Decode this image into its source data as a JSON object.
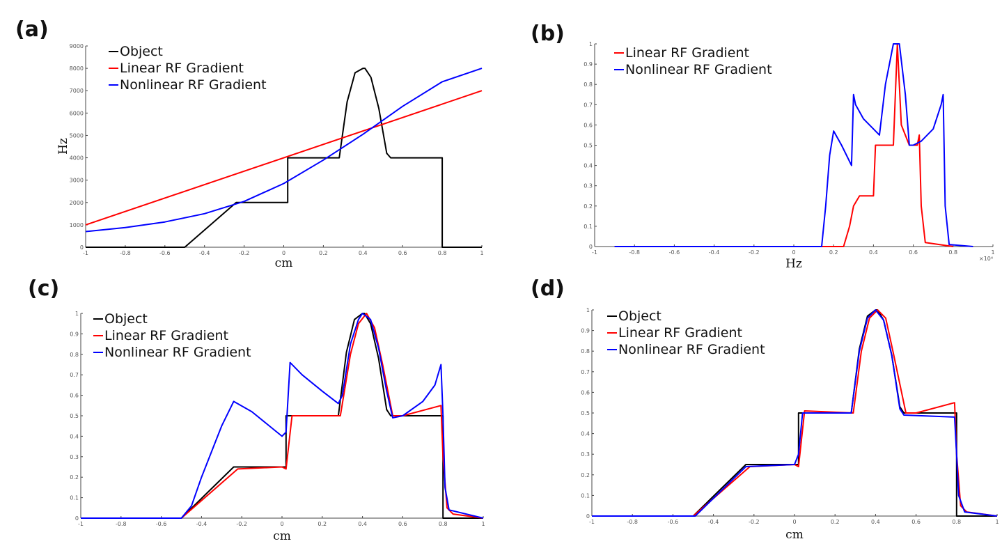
{
  "panels": [
    {
      "label": "(a)"
    },
    {
      "label": "(b)"
    },
    {
      "label": "(c)"
    },
    {
      "label": "(d)"
    }
  ],
  "colors": {
    "object": "#000000",
    "linear": "#ff0000",
    "nonlinear": "#0000ff"
  },
  "chart_data": [
    {
      "type": "line",
      "panel": "(a)",
      "xlabel": "cm",
      "ylabel": "Hz",
      "xlim": [
        -1,
        1
      ],
      "ylim": [
        0,
        9000
      ],
      "xticks": [
        "-1",
        "-0.8",
        "-0.6",
        "-0.4",
        "-0.2",
        "0",
        "0.2",
        "0.4",
        "0.6",
        "0.8",
        "1"
      ],
      "yticks": [
        "0",
        "1000",
        "2000",
        "3000",
        "4000",
        "5000",
        "6000",
        "7000",
        "8000",
        "9000"
      ],
      "legend": [
        "Object",
        "Linear RF Gradient",
        "Nonlinear RF Gradient"
      ],
      "series": [
        {
          "name": "Object",
          "color": "#000000",
          "x": [
            -1,
            -0.5,
            -0.24,
            0.02,
            0.02,
            0.28,
            0.32,
            0.36,
            0.4,
            0.41,
            0.44,
            0.48,
            0.52,
            0.54,
            0.8,
            0.8,
            1
          ],
          "y": [
            0,
            0,
            2000,
            2000,
            4000,
            4000,
            6500,
            7800,
            8000,
            8000,
            7600,
            6200,
            4200,
            4000,
            4000,
            0,
            0
          ]
        },
        {
          "name": "Linear RF Gradient",
          "color": "#ff0000",
          "x": [
            -1,
            1
          ],
          "y": [
            1000,
            7000
          ]
        },
        {
          "name": "Nonlinear RF Gradient",
          "color": "#0000ff",
          "x": [
            -1,
            -0.8,
            -0.6,
            -0.4,
            -0.2,
            0,
            0.2,
            0.4,
            0.6,
            0.8,
            1
          ],
          "y": [
            700,
            880,
            1130,
            1500,
            2050,
            2850,
            3900,
            5050,
            6300,
            7400,
            8000
          ]
        }
      ]
    },
    {
      "type": "line",
      "panel": "(b)",
      "xlabel": "Hz",
      "xlim": [
        -1,
        1
      ],
      "ylim": [
        0,
        1
      ],
      "x_multiplier": "×10⁴",
      "xticks": [
        "-1",
        "-0.8",
        "-0.6",
        "-0.4",
        "-0.2",
        "0",
        "0.2",
        "0.4",
        "0.6",
        "0.8",
        "1"
      ],
      "yticks": [
        "0",
        "0.1",
        "0.2",
        "0.3",
        "0.4",
        "0.5",
        "0.6",
        "0.7",
        "0.8",
        "0.9",
        "1"
      ],
      "legend": [
        "Linear RF Gradient",
        "Nonlinear RF Gradient"
      ],
      "series": [
        {
          "name": "Linear RF Gradient",
          "color": "#ff0000",
          "x": [
            -0.9,
            0.25,
            0.28,
            0.3,
            0.33,
            0.4,
            0.41,
            0.42,
            0.5,
            0.52,
            0.54,
            0.58,
            0.62,
            0.63,
            0.64,
            0.66,
            0.8
          ],
          "y": [
            0,
            0,
            0.1,
            0.2,
            0.25,
            0.25,
            0.5,
            0.5,
            0.5,
            1.0,
            0.6,
            0.5,
            0.5,
            0.55,
            0.2,
            0.02,
            0
          ]
        },
        {
          "name": "Nonlinear RF Gradient",
          "color": "#0000ff",
          "x": [
            -0.9,
            0.14,
            0.16,
            0.18,
            0.2,
            0.24,
            0.29,
            0.3,
            0.31,
            0.35,
            0.4,
            0.43,
            0.46,
            0.5,
            0.53,
            0.56,
            0.58,
            0.6,
            0.64,
            0.7,
            0.74,
            0.75,
            0.76,
            0.78,
            0.9
          ],
          "y": [
            0,
            0,
            0.2,
            0.45,
            0.57,
            0.5,
            0.4,
            0.75,
            0.7,
            0.63,
            0.58,
            0.55,
            0.8,
            1.0,
            1.0,
            0.75,
            0.5,
            0.5,
            0.52,
            0.58,
            0.7,
            0.75,
            0.2,
            0.01,
            0
          ]
        }
      ]
    },
    {
      "type": "line",
      "panel": "(c)",
      "xlabel": "cm",
      "xlim": [
        -1,
        1
      ],
      "ylim": [
        0,
        1
      ],
      "xticks": [
        "-1",
        "-0.8",
        "-0.6",
        "-0.4",
        "-0.2",
        "0",
        "0.2",
        "0.4",
        "0.6",
        "0.8",
        "1"
      ],
      "yticks": [
        "0",
        "0.1",
        "0.2",
        "0.3",
        "0.4",
        "0.5",
        "0.6",
        "0.7",
        "0.8",
        "0.9",
        "1"
      ],
      "legend": [
        "Object",
        "Linear RF Gradient",
        "Nonlinear RF Gradient"
      ],
      "series": [
        {
          "name": "Object",
          "color": "#000000",
          "x": [
            -1,
            -0.5,
            -0.24,
            0.02,
            0.02,
            0.28,
            0.32,
            0.36,
            0.4,
            0.41,
            0.44,
            0.48,
            0.52,
            0.54,
            0.8,
            0.8,
            1
          ],
          "y": [
            0,
            0,
            0.25,
            0.25,
            0.5,
            0.5,
            0.81,
            0.97,
            1.0,
            1.0,
            0.95,
            0.78,
            0.53,
            0.5,
            0.5,
            0,
            0
          ]
        },
        {
          "name": "Linear RF Gradient",
          "color": "#ff0000",
          "x": [
            -1,
            -0.5,
            -0.22,
            0,
            0.02,
            0.05,
            0.29,
            0.34,
            0.38,
            0.42,
            0.46,
            0.5,
            0.55,
            0.6,
            0.79,
            0.8,
            0.82,
            0.85,
            1
          ],
          "y": [
            0,
            0,
            0.24,
            0.25,
            0.24,
            0.5,
            0.5,
            0.8,
            0.95,
            1.0,
            0.93,
            0.75,
            0.5,
            0.5,
            0.55,
            0.3,
            0.05,
            0.02,
            0
          ]
        },
        {
          "name": "Nonlinear RF Gradient",
          "color": "#0000ff",
          "x": [
            -1,
            -0.5,
            -0.45,
            -0.4,
            -0.3,
            -0.24,
            -0.15,
            0,
            0.02,
            0.04,
            0.1,
            0.2,
            0.28,
            0.3,
            0.34,
            0.38,
            0.4,
            0.44,
            0.48,
            0.52,
            0.55,
            0.6,
            0.7,
            0.76,
            0.79,
            0.8,
            0.81,
            0.83,
            1
          ],
          "y": [
            0,
            0,
            0.06,
            0.2,
            0.45,
            0.57,
            0.52,
            0.4,
            0.42,
            0.76,
            0.7,
            0.62,
            0.56,
            0.6,
            0.85,
            0.97,
            1.0,
            0.97,
            0.83,
            0.62,
            0.49,
            0.5,
            0.57,
            0.65,
            0.75,
            0.5,
            0.15,
            0.04,
            0
          ]
        }
      ]
    },
    {
      "type": "line",
      "panel": "(d)",
      "xlabel": "cm",
      "xlim": [
        -1,
        1
      ],
      "ylim": [
        0,
        1
      ],
      "xticks": [
        "-1",
        "-0.8",
        "-0.6",
        "-0.4",
        "-0.2",
        "0",
        "0.2",
        "0.4",
        "0.6",
        "0.8",
        "1"
      ],
      "yticks": [
        "0",
        "0.1",
        "0.2",
        "0.3",
        "0.4",
        "0.5",
        "0.6",
        "0.7",
        "0.8",
        "0.9",
        "1"
      ],
      "legend": [
        "Object",
        "Linear RF Gradient",
        "Nonlinear RF Gradient"
      ],
      "series": [
        {
          "name": "Object",
          "color": "#000000",
          "x": [
            -1,
            -0.5,
            -0.24,
            0.02,
            0.02,
            0.28,
            0.32,
            0.36,
            0.4,
            0.41,
            0.44,
            0.48,
            0.52,
            0.54,
            0.8,
            0.8,
            1
          ],
          "y": [
            0,
            0,
            0.25,
            0.25,
            0.5,
            0.5,
            0.81,
            0.97,
            1.0,
            1.0,
            0.95,
            0.78,
            0.53,
            0.5,
            0.5,
            0,
            0
          ]
        },
        {
          "name": "Linear RF Gradient",
          "color": "#ff0000",
          "x": [
            -1,
            -0.5,
            -0.22,
            0,
            0.02,
            0.05,
            0.29,
            0.33,
            0.37,
            0.41,
            0.45,
            0.49,
            0.55,
            0.6,
            0.79,
            0.8,
            0.82,
            0.85,
            1
          ],
          "y": [
            0,
            0,
            0.24,
            0.25,
            0.24,
            0.51,
            0.5,
            0.8,
            0.96,
            1.0,
            0.96,
            0.78,
            0.5,
            0.5,
            0.55,
            0.3,
            0.05,
            0.02,
            0
          ]
        },
        {
          "name": "Nonlinear RF Gradient",
          "color": "#0000ff",
          "x": [
            -1,
            -0.49,
            -0.24,
            0,
            0.02,
            0.04,
            0.28,
            0.32,
            0.36,
            0.4,
            0.44,
            0.48,
            0.52,
            0.54,
            0.79,
            0.8,
            0.81,
            0.84,
            1
          ],
          "y": [
            0,
            0,
            0.24,
            0.25,
            0.3,
            0.5,
            0.5,
            0.8,
            0.96,
            1.0,
            0.95,
            0.78,
            0.52,
            0.49,
            0.48,
            0.3,
            0.1,
            0.02,
            0
          ]
        }
      ]
    }
  ]
}
